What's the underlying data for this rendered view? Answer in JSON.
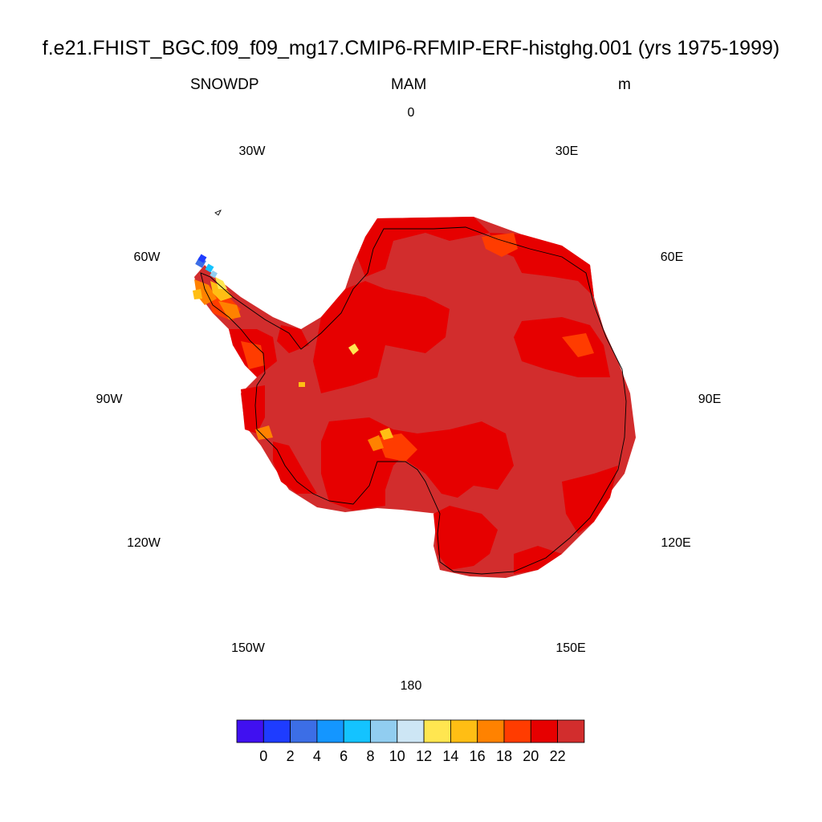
{
  "title": "f.e21.FHIST_BGC.f09_f09_mg17.CMIP6-RFMIP-ERF-histghg.001 (yrs 1975-1999)",
  "variable": "SNOWDP",
  "season": "MAM",
  "units": "m",
  "longitude_labels": [
    "0",
    "30E",
    "60E",
    "90E",
    "120E",
    "150E",
    "180",
    "150W",
    "120W",
    "90W",
    "60W",
    "30W"
  ],
  "projection": "south polar stereographic",
  "colorbar": {
    "colors": [
      "#4010f0",
      "#1e3cff",
      "#3c6ee6",
      "#1496ff",
      "#14c3ff",
      "#91cdf0",
      "#cde6f5",
      "#ffe650",
      "#ffbe14",
      "#ff8200",
      "#ff3c00",
      "#e60000",
      "#d22d2d"
    ],
    "tick_labels": [
      "0",
      "2",
      "4",
      "6",
      "8",
      "10",
      "12",
      "14",
      "16",
      "18",
      "20",
      "22"
    ]
  }
}
